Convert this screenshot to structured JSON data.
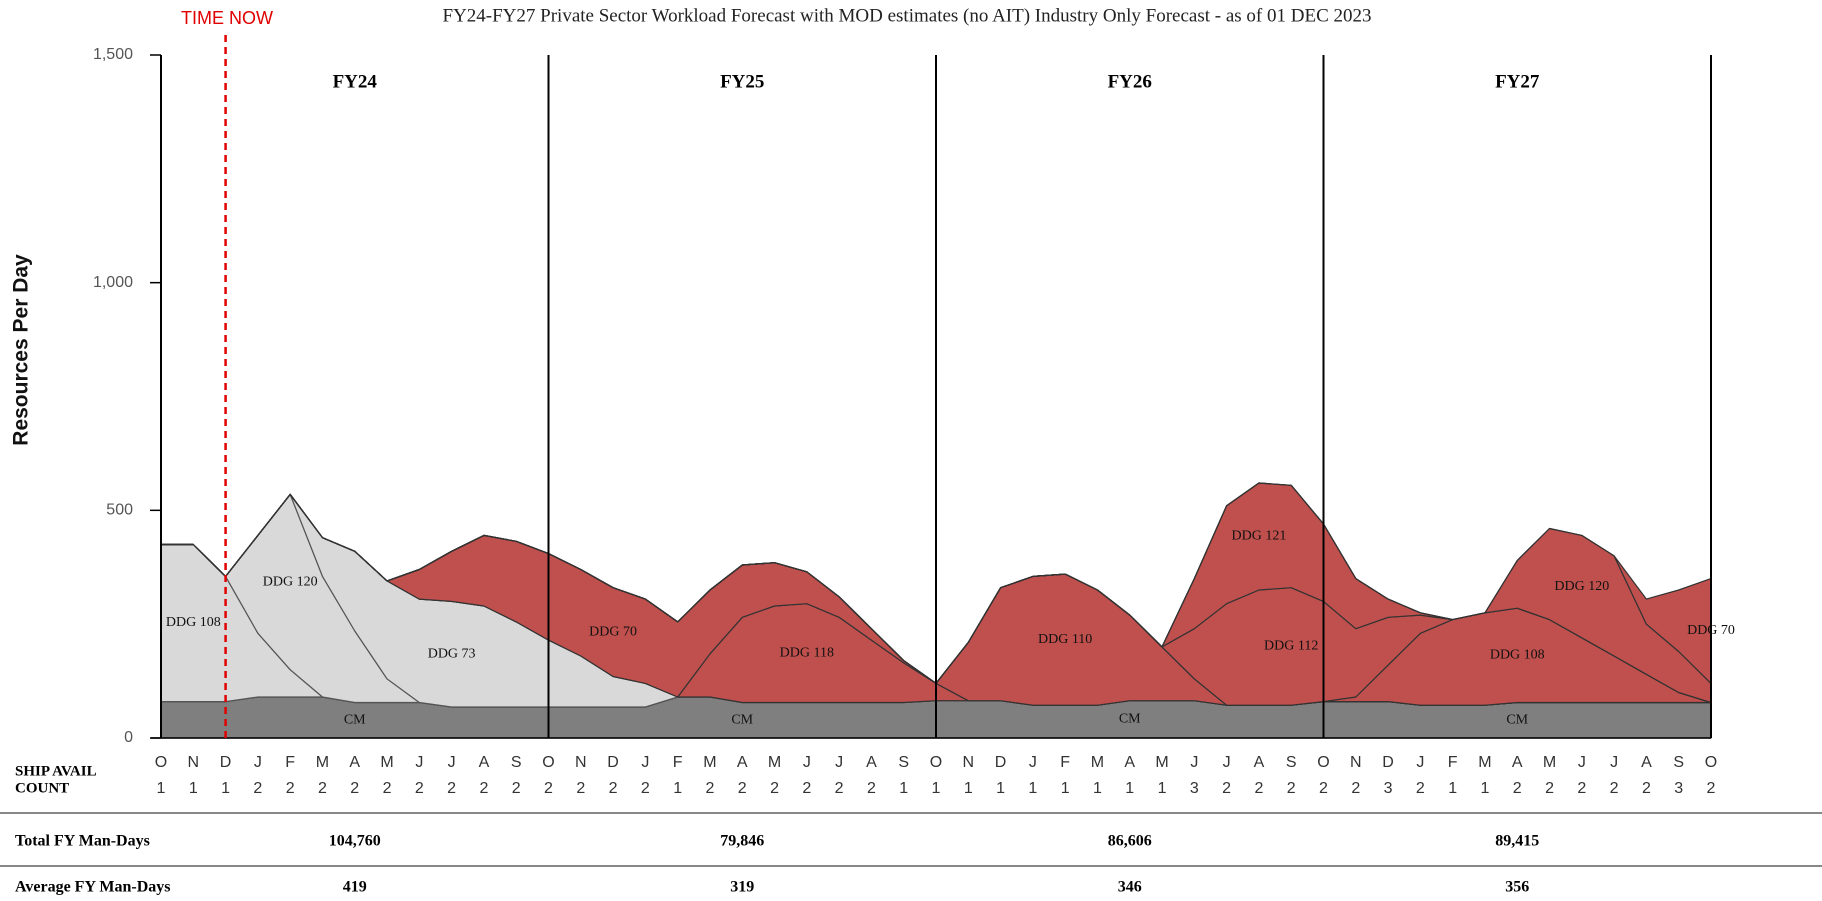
{
  "chart_data": {
    "type": "area",
    "stacked": true,
    "title": "FY24-FY27 Private Sector Workload Forecast with MOD estimates (no AIT) Industry Only Forecast - as of 01 DEC 2023",
    "annotation": "TIME NOW",
    "ylabel": "Resources Per Day",
    "ylim": [
      0,
      1500
    ],
    "yticks": [
      0,
      500,
      {
        "value": 1000,
        "label": "1,000"
      },
      {
        "value": 1500,
        "label": "1,500"
      }
    ],
    "fiscal_years": [
      "FY24",
      "FY25",
      "FY26",
      "FY27"
    ],
    "categories": [
      "O",
      "N",
      "D",
      "J",
      "F",
      "M",
      "A",
      "M",
      "J",
      "J",
      "A",
      "S",
      "O",
      "N",
      "D",
      "J",
      "F",
      "M",
      "A",
      "M",
      "J",
      "J",
      "A",
      "S",
      "O",
      "N",
      "D",
      "J",
      "F",
      "M",
      "A",
      "M",
      "J",
      "J",
      "A",
      "S",
      "O",
      "N",
      "D",
      "J",
      "F",
      "M",
      "A",
      "M",
      "J",
      "J",
      "A",
      "S",
      "O"
    ],
    "count_label": [
      "SHIP AVAIL",
      "COUNT"
    ],
    "counts": [
      1,
      1,
      1,
      2,
      2,
      2,
      2,
      2,
      2,
      2,
      2,
      2,
      2,
      2,
      2,
      2,
      1,
      2,
      2,
      2,
      2,
      2,
      2,
      1,
      1,
      1,
      1,
      1,
      1,
      1,
      1,
      1,
      3,
      2,
      2,
      2,
      2,
      2,
      3,
      2,
      1,
      1,
      2,
      2,
      2,
      2,
      2,
      3,
      2
    ],
    "series": [
      {
        "name": "CM",
        "color": "#7f7f7f",
        "values": [
          80,
          80,
          80,
          90,
          90,
          90,
          78,
          78,
          78,
          68,
          68,
          68,
          68,
          68,
          68,
          68,
          90,
          90,
          78,
          78,
          78,
          78,
          78,
          78,
          82,
          82,
          82,
          72,
          72,
          72,
          82,
          82,
          82,
          72,
          72,
          72,
          80,
          80,
          80,
          72,
          72,
          72,
          78,
          78,
          78,
          78,
          78,
          78,
          78
        ]
      },
      {
        "name": "DDG 108",
        "color": "#d9d9d9",
        "values": [
          345,
          345,
          275,
          140,
          60,
          0,
          0,
          0,
          0,
          0,
          0,
          0,
          0,
          0,
          0,
          0,
          0,
          0,
          0,
          0,
          0,
          0,
          0,
          0,
          0,
          0,
          0,
          0,
          0,
          0,
          0,
          0,
          0,
          0,
          0,
          0,
          0,
          0,
          0,
          0,
          0,
          0,
          0,
          0,
          0,
          0,
          0,
          0,
          0
        ]
      },
      {
        "name": "DDG 120",
        "color": "#d9d9d9",
        "values": [
          0,
          0,
          0,
          215,
          385,
          265,
          157,
          52,
          0,
          0,
          0,
          0,
          0,
          0,
          0,
          0,
          0,
          0,
          0,
          0,
          0,
          0,
          0,
          0,
          0,
          0,
          0,
          0,
          0,
          0,
          0,
          0,
          0,
          0,
          0,
          0,
          0,
          0,
          0,
          0,
          0,
          0,
          0,
          0,
          0,
          0,
          0,
          0,
          0
        ]
      },
      {
        "name": "DDG 73",
        "color": "#d9d9d9",
        "values": [
          0,
          0,
          0,
          0,
          0,
          85,
          175,
          215,
          227,
          232,
          222,
          187,
          147,
          112,
          67,
          52,
          0,
          0,
          0,
          0,
          0,
          0,
          0,
          0,
          0,
          0,
          0,
          0,
          0,
          0,
          0,
          0,
          0,
          0,
          0,
          0,
          0,
          0,
          0,
          0,
          0,
          0,
          0,
          0,
          0,
          0,
          0,
          0,
          0
        ]
      },
      {
        "name": "DDG 118",
        "color": "#c0504d",
        "values": [
          0,
          0,
          0,
          0,
          0,
          0,
          0,
          0,
          0,
          0,
          0,
          0,
          0,
          0,
          0,
          0,
          0,
          95,
          187,
          212,
          217,
          187,
          137,
          87,
          38,
          0,
          0,
          0,
          0,
          0,
          0,
          0,
          0,
          0,
          0,
          0,
          0,
          0,
          0,
          0,
          0,
          0,
          0,
          0,
          0,
          0,
          0,
          0,
          0
        ]
      },
      {
        "name": "DDG 70",
        "color": "#c0504d",
        "values": [
          0,
          0,
          0,
          0,
          0,
          0,
          0,
          0,
          65,
          110,
          155,
          177,
          190,
          190,
          195,
          185,
          165,
          140,
          115,
          95,
          70,
          45,
          25,
          5,
          0,
          0,
          0,
          0,
          0,
          0,
          0,
          0,
          0,
          0,
          0,
          0,
          0,
          0,
          0,
          0,
          0,
          0,
          0,
          0,
          0,
          0,
          0,
          0,
          0
        ]
      },
      {
        "name": "DDG 110",
        "color": "#c0504d",
        "values": [
          0,
          0,
          0,
          0,
          0,
          0,
          0,
          0,
          0,
          0,
          0,
          0,
          0,
          0,
          0,
          0,
          0,
          0,
          0,
          0,
          0,
          0,
          0,
          0,
          0,
          128,
          248,
          283,
          288,
          253,
          188,
          118,
          48,
          0,
          0,
          0,
          0,
          0,
          0,
          0,
          0,
          0,
          0,
          0,
          0,
          0,
          0,
          0,
          0
        ]
      },
      {
        "name": "DDG 108",
        "color": "#c0504d",
        "values": [
          0,
          0,
          0,
          0,
          0,
          0,
          0,
          0,
          0,
          0,
          0,
          0,
          0,
          0,
          0,
          0,
          0,
          0,
          0,
          0,
          0,
          0,
          0,
          0,
          0,
          0,
          0,
          0,
          0,
          0,
          0,
          0,
          0,
          0,
          0,
          0,
          0,
          10,
          80,
          158,
          188,
          203,
          207,
          182,
          142,
          102,
          62,
          22,
          0
        ]
      },
      {
        "name": "DDG 112",
        "color": "#c0504d",
        "values": [
          0,
          0,
          0,
          0,
          0,
          0,
          0,
          0,
          0,
          0,
          0,
          0,
          0,
          0,
          0,
          0,
          0,
          0,
          0,
          0,
          0,
          0,
          0,
          0,
          0,
          0,
          0,
          0,
          0,
          0,
          0,
          0,
          110,
          223,
          253,
          258,
          220,
          150,
          105,
          40,
          0,
          0,
          0,
          0,
          0,
          0,
          0,
          0,
          0
        ]
      },
      {
        "name": "DDG 121",
        "color": "#c0504d",
        "values": [
          0,
          0,
          0,
          0,
          0,
          0,
          0,
          0,
          0,
          0,
          0,
          0,
          0,
          0,
          0,
          0,
          0,
          0,
          0,
          0,
          0,
          0,
          0,
          0,
          0,
          0,
          0,
          0,
          0,
          0,
          0,
          0,
          110,
          215,
          235,
          225,
          170,
          110,
          40,
          5,
          0,
          0,
          0,
          0,
          0,
          0,
          0,
          0,
          0
        ]
      },
      {
        "name": "DDG 120",
        "color": "#c0504d",
        "values": [
          0,
          0,
          0,
          0,
          0,
          0,
          0,
          0,
          0,
          0,
          0,
          0,
          0,
          0,
          0,
          0,
          0,
          0,
          0,
          0,
          0,
          0,
          0,
          0,
          0,
          0,
          0,
          0,
          0,
          0,
          0,
          0,
          0,
          0,
          0,
          0,
          0,
          0,
          0,
          0,
          0,
          0,
          105,
          200,
          225,
          220,
          110,
          90,
          42
        ]
      },
      {
        "name": "DDG 70",
        "color": "#c0504d",
        "values": [
          0,
          0,
          0,
          0,
          0,
          0,
          0,
          0,
          0,
          0,
          0,
          0,
          0,
          0,
          0,
          0,
          0,
          0,
          0,
          0,
          0,
          0,
          0,
          0,
          0,
          0,
          0,
          0,
          0,
          0,
          0,
          0,
          0,
          0,
          0,
          0,
          0,
          0,
          0,
          0,
          0,
          0,
          0,
          0,
          0,
          0,
          55,
          135,
          230
        ]
      }
    ]
  },
  "summary": {
    "rows": [
      {
        "label": "Total FY Man-Days",
        "values": [
          "104,760",
          "79,846",
          "86,606",
          "89,415"
        ]
      },
      {
        "label": "Average FY Man-Days",
        "values": [
          "419",
          "319",
          "346",
          "356"
        ]
      }
    ]
  }
}
